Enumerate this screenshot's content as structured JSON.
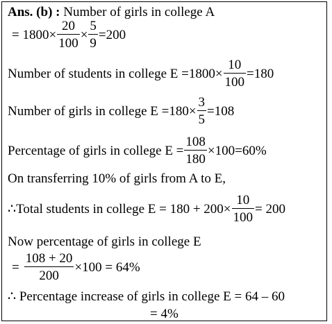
{
  "ans_label": "Ans. (b) :",
  "l1_text": "Number of girls in college A",
  "l2": {
    "lead": "= 1800×",
    "f1_num": "20",
    "f1_den": "100",
    "times": "×",
    "f2_num": "5",
    "f2_den": "9",
    "result": "=200"
  },
  "l3": {
    "lead": "Number of students in college E =1800×",
    "f_num": "10",
    "f_den": "100",
    "result": "=180"
  },
  "l4": {
    "lead": "Number of girls in college E =180×",
    "f_num": "3",
    "f_den": "5",
    "result": "=108"
  },
  "l5": {
    "lead": "Percentage of girls in college E =",
    "f_num": "108",
    "f_den": "180",
    "result": "×100=60%"
  },
  "l6_text": "On transferring 10% of girls from A to E,",
  "l7": {
    "lead": "∴Total students in college E = 180 + 200×",
    "f_num": "10",
    "f_den": "100",
    "result": "= 200"
  },
  "l8_text": "Now percentage of girls in college E",
  "l9": {
    "lead": "=",
    "f_num": "108 + 20",
    "f_den": "200",
    "result": "×100 = 64%"
  },
  "l10_text": "∴ Percentage increase of girls in college E = 64 – 60",
  "l11_text": "= 4%"
}
